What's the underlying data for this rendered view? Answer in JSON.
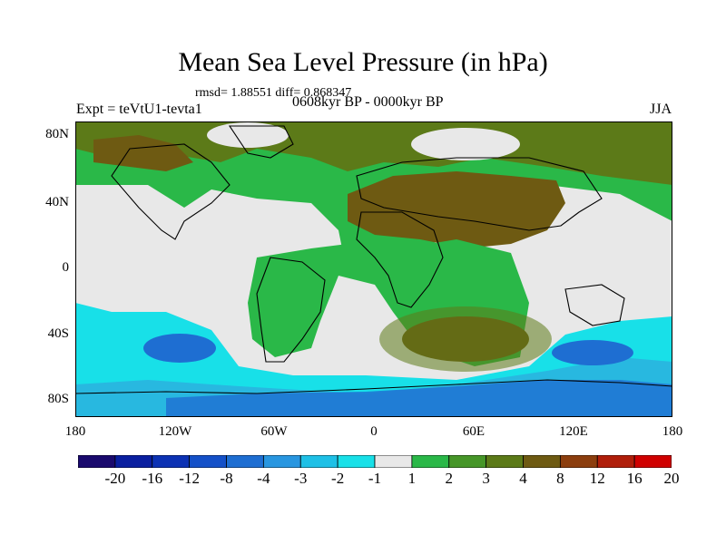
{
  "header": {
    "title": "Mean Sea Level Pressure (in hPa)",
    "stats": "rmsd= 1.88551 diff= 0.868347",
    "period": "0608kyr BP - 0000kyr BP",
    "experiment": "Expt = teVtU1-tevta1",
    "season": "JJA"
  },
  "axes": {
    "lat_labels": [
      "80N",
      "40N",
      "0",
      "40S",
      "80S"
    ],
    "lon_labels": [
      "180",
      "120W",
      "60W",
      "0",
      "60E",
      "120E",
      "180"
    ]
  },
  "colorbar": {
    "labels": [
      "-20",
      "-16",
      "-12",
      "-8",
      "-4",
      "-3",
      "-2",
      "-1",
      "1",
      "2",
      "3",
      "4",
      "8",
      "12",
      "16",
      "20"
    ],
    "colors": [
      "#1a0a6e",
      "#0a1fa0",
      "#0c32b4",
      "#1450c8",
      "#1e6ed2",
      "#2896e0",
      "#1ec0e6",
      "#18e0e8",
      "#e8e8e8",
      "#2ab848",
      "#469628",
      "#5c7a18",
      "#6e5a12",
      "#8c3e0e",
      "#b01e0a",
      "#d00000"
    ]
  },
  "legend_colors": {
    "neutral": "#e8e8e8",
    "light_green": "#2ab848",
    "olive": "#5c7a18",
    "brown": "#6e5a12",
    "cyan": "#18e0e8",
    "light_blue": "#28b8e0",
    "blue": "#1e6ed2"
  }
}
